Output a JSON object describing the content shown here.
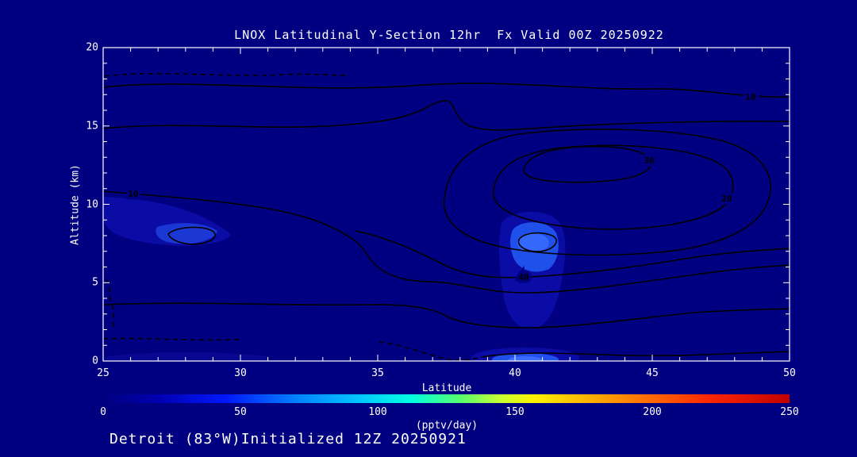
{
  "window": {
    "bg": "#000080",
    "fg": "#ffffff"
  },
  "chart_data": {
    "type": "heatmap",
    "variant": "filled-contour-latitude-altitude-cross-section",
    "title": "LNOX Latitudinal Y-Section 12hr  Fx Valid 00Z 20250922",
    "xlabel": "Latitude",
    "ylabel": "Altitude (km)",
    "xlim": [
      25,
      50
    ],
    "ylim": [
      0,
      20
    ],
    "grid": false,
    "x_ticks": [
      "25",
      "30",
      "35",
      "40",
      "45",
      "50"
    ],
    "y_ticks": [
      "20",
      "15",
      "10",
      "5",
      "0"
    ],
    "contour_labels": [
      {
        "level": "10",
        "lat": 48.6,
        "alt_km": 16.7
      },
      {
        "level": "10",
        "lat": 26.1,
        "alt_km": 10.6
      },
      {
        "level": "20",
        "lat": 47.7,
        "alt_km": 10.3
      },
      {
        "level": "30",
        "lat": 44.9,
        "alt_km": 12.8
      },
      {
        "level": "40",
        "lat": 40.3,
        "alt_km": 5.3
      }
    ],
    "enhancements": [
      {
        "lat": 27.8,
        "alt_km": 8.0,
        "approx_value_pptv_day": 30
      },
      {
        "lat": 40.7,
        "alt_km": 7.3,
        "approx_value_pptv_day": 60
      },
      {
        "lat": 40.8,
        "alt_km": 0.3,
        "approx_value_pptv_day": 45
      }
    ],
    "colorbar": {
      "min": 0,
      "max": 250,
      "ticks": [
        "0",
        "50",
        "100",
        "150",
        "200",
        "250"
      ],
      "label": "(pptv/day)",
      "colors": [
        "#000080",
        "#0000b0",
        "#0018ff",
        "#0080ff",
        "#00c4ff",
        "#00ffe0",
        "#58ff6e",
        "#c8ff30",
        "#fff000",
        "#ffb000",
        "#ff7000",
        "#ff2800",
        "#c00000"
      ]
    }
  },
  "footer": {
    "text": "Detroit (83°W)Initialized 12Z 20250921"
  }
}
